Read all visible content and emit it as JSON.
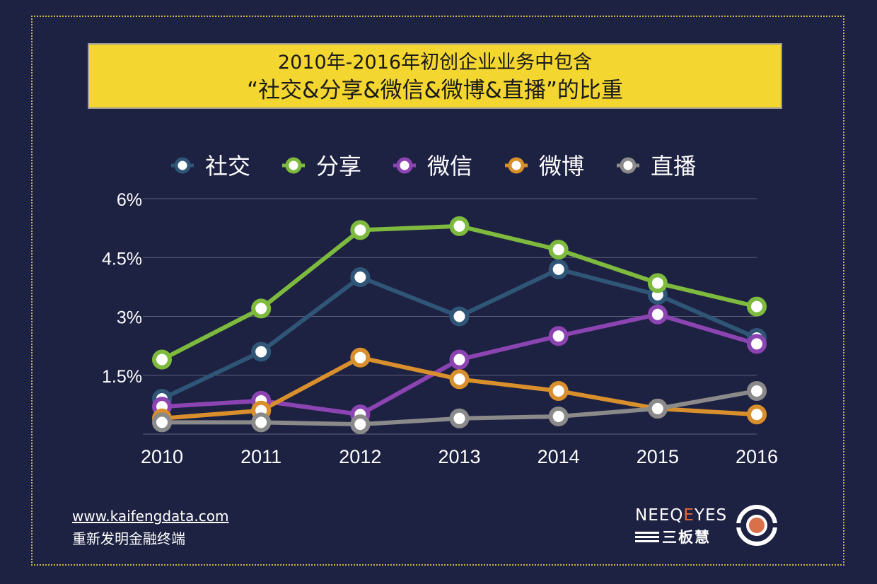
{
  "title": {
    "line1": "2010年-2016年初创企业业务中包含",
    "line2": "“社交&分享&微信&微博&直播”的比重"
  },
  "chart_data": {
    "type": "line",
    "categories": [
      "2010",
      "2011",
      "2012",
      "2013",
      "2014",
      "2015",
      "2016"
    ],
    "y_ticks": [
      "6%",
      "4.5%",
      "3%",
      "1.5%"
    ],
    "ylim": [
      0,
      6
    ],
    "legend_position": "top",
    "series": [
      {
        "name": "社交",
        "color": "#2f5577",
        "values": [
          0.9,
          2.1,
          4.0,
          3.0,
          4.2,
          3.55,
          2.45
        ]
      },
      {
        "name": "分享",
        "color": "#7dba3e",
        "values": [
          1.9,
          3.2,
          5.2,
          5.3,
          4.7,
          3.85,
          3.25
        ]
      },
      {
        "name": "微信",
        "color": "#8c44b2",
        "values": [
          0.7,
          0.85,
          0.5,
          1.9,
          2.5,
          3.05,
          2.3
        ]
      },
      {
        "name": "微博",
        "color": "#d98f2b",
        "values": [
          0.4,
          0.6,
          1.95,
          1.4,
          1.1,
          0.65,
          0.5
        ]
      },
      {
        "name": "直播",
        "color": "#8a8a8a",
        "values": [
          0.3,
          0.3,
          0.25,
          0.4,
          0.45,
          0.65,
          1.1
        ]
      }
    ]
  },
  "footer": {
    "url": "www.kaifengdata.com",
    "slogan": "重新发明金融终端"
  },
  "brand": {
    "en_prefix": "NEEQ",
    "en_highlight": "E",
    "en_suffix": "YES",
    "cn": "三板慧"
  }
}
